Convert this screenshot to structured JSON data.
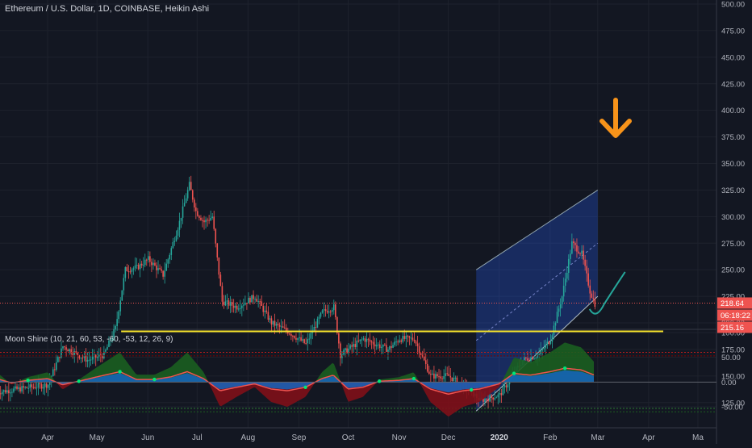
{
  "chart_data": [
    {
      "type": "candlestick",
      "title": "Ethereum / U.S. Dollar, 1D, COINBASE, Heikin Ashi",
      "y_ticks": [
        "500.00",
        "475.00",
        "450.00",
        "425.00",
        "400.00",
        "375.00",
        "350.00",
        "325.00",
        "300.00",
        "275.00",
        "250.00",
        "225.00",
        "200.00",
        "175.00",
        "150.00",
        "125.00"
      ],
      "ylim": [
        117,
        505
      ],
      "x_ticks": [
        "Apr",
        "May",
        "Jun",
        "Jul",
        "Aug",
        "Sep",
        "Oct",
        "Nov",
        "Dec",
        "2020",
        "Feb",
        "Mar",
        "Apr",
        "Ma"
      ],
      "price_labels": {
        "last_price": "218.64",
        "countdown": "06:18:22",
        "support_price": "215.16"
      },
      "colors": {
        "up": "#26a69a",
        "down": "#ef5350",
        "support": "#f5e22b",
        "channel": "#2962ff",
        "arrow": "#f7931a",
        "projection": "#26a69a"
      },
      "annotations": [
        "horizontal support line at ~192",
        "ascending parallel channel",
        "downward arrow",
        "hand-drawn bounce projection"
      ],
      "price_path": [
        {
          "date": "2019-03-01",
          "close": 135
        },
        {
          "date": "2019-03-15",
          "close": 138
        },
        {
          "date": "2019-04-01",
          "close": 142
        },
        {
          "date": "2019-04-10",
          "close": 178
        },
        {
          "date": "2019-04-25",
          "close": 165
        },
        {
          "date": "2019-05-05",
          "close": 170
        },
        {
          "date": "2019-05-12",
          "close": 195
        },
        {
          "date": "2019-05-18",
          "close": 250
        },
        {
          "date": "2019-05-25",
          "close": 252
        },
        {
          "date": "2019-06-01",
          "close": 260
        },
        {
          "date": "2019-06-10",
          "close": 245
        },
        {
          "date": "2019-06-20",
          "close": 295
        },
        {
          "date": "2019-06-26",
          "close": 330
        },
        {
          "date": "2019-06-30",
          "close": 305
        },
        {
          "date": "2019-07-05",
          "close": 295
        },
        {
          "date": "2019-07-10",
          "close": 300
        },
        {
          "date": "2019-07-16",
          "close": 220
        },
        {
          "date": "2019-07-25",
          "close": 215
        },
        {
          "date": "2019-08-05",
          "close": 225
        },
        {
          "date": "2019-08-15",
          "close": 200
        },
        {
          "date": "2019-08-25",
          "close": 192
        },
        {
          "date": "2019-09-05",
          "close": 180
        },
        {
          "date": "2019-09-15",
          "close": 210
        },
        {
          "date": "2019-09-22",
          "close": 215
        },
        {
          "date": "2019-09-26",
          "close": 170
        },
        {
          "date": "2019-10-10",
          "close": 185
        },
        {
          "date": "2019-10-25",
          "close": 175
        },
        {
          "date": "2019-11-01",
          "close": 185
        },
        {
          "date": "2019-11-10",
          "close": 185
        },
        {
          "date": "2019-11-20",
          "close": 150
        },
        {
          "date": "2019-12-01",
          "close": 150
        },
        {
          "date": "2019-12-15",
          "close": 135
        },
        {
          "date": "2019-12-20",
          "close": 127
        },
        {
          "date": "2020-01-01",
          "close": 132
        },
        {
          "date": "2020-01-15",
          "close": 165
        },
        {
          "date": "2020-01-25",
          "close": 170
        },
        {
          "date": "2020-02-01",
          "close": 185
        },
        {
          "date": "2020-02-08",
          "close": 225
        },
        {
          "date": "2020-02-14",
          "close": 275
        },
        {
          "date": "2020-02-20",
          "close": 265
        },
        {
          "date": "2020-02-25",
          "close": 230
        },
        {
          "date": "2020-02-28",
          "close": 218
        }
      ]
    },
    {
      "type": "area",
      "title": "Moon Shine (10, 21, 60, 53, -60, -53, 12, 26, 9)",
      "y_ticks": [
        "100.00",
        "50.00",
        "0.00",
        "-50.00"
      ],
      "ylim": [
        -110,
        105
      ],
      "bands": [
        60,
        -60
      ],
      "colors": {
        "positive": "#1b5e20",
        "negative": "#7f1018",
        "baseline": "#1565c0",
        "signal": "#ef5350",
        "dots": "#00e676"
      },
      "oscillator": [
        {
          "date": "2019-03-01",
          "value": 20
        },
        {
          "date": "2019-03-10",
          "value": -5
        },
        {
          "date": "2019-03-20",
          "value": 10
        },
        {
          "date": "2019-04-01",
          "value": 20
        },
        {
          "date": "2019-04-10",
          "value": -15
        },
        {
          "date": "2019-04-20",
          "value": 5
        },
        {
          "date": "2019-05-01",
          "value": 30
        },
        {
          "date": "2019-05-15",
          "value": 60
        },
        {
          "date": "2019-05-25",
          "value": 15
        },
        {
          "date": "2019-06-05",
          "value": 15
        },
        {
          "date": "2019-06-15",
          "value": 30
        },
        {
          "date": "2019-06-25",
          "value": 60
        },
        {
          "date": "2019-07-05",
          "value": 20
        },
        {
          "date": "2019-07-15",
          "value": -50
        },
        {
          "date": "2019-07-25",
          "value": -30
        },
        {
          "date": "2019-08-05",
          "value": -10
        },
        {
          "date": "2019-08-15",
          "value": -40
        },
        {
          "date": "2019-08-25",
          "value": -50
        },
        {
          "date": "2019-09-05",
          "value": -30
        },
        {
          "date": "2019-09-15",
          "value": 20
        },
        {
          "date": "2019-09-22",
          "value": 40
        },
        {
          "date": "2019-10-01",
          "value": -40
        },
        {
          "date": "2019-10-10",
          "value": -30
        },
        {
          "date": "2019-10-20",
          "value": 5
        },
        {
          "date": "2019-11-01",
          "value": 10
        },
        {
          "date": "2019-11-10",
          "value": 20
        },
        {
          "date": "2019-11-20",
          "value": -40
        },
        {
          "date": "2019-12-01",
          "value": -70
        },
        {
          "date": "2019-12-10",
          "value": -50
        },
        {
          "date": "2019-12-20",
          "value": -40
        },
        {
          "date": "2020-01-01",
          "value": -10
        },
        {
          "date": "2020-01-10",
          "value": 50
        },
        {
          "date": "2020-01-20",
          "value": 40
        },
        {
          "date": "2020-02-01",
          "value": 60
        },
        {
          "date": "2020-02-10",
          "value": 80
        },
        {
          "date": "2020-02-20",
          "value": 70
        },
        {
          "date": "2020-02-28",
          "value": 40
        }
      ]
    }
  ]
}
